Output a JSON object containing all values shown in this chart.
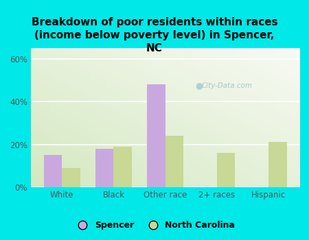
{
  "title": "Breakdown of poor residents within races\n(income below poverty level) in Spencer,\nNC",
  "categories": [
    "White",
    "Black",
    "Other race",
    "2+ races",
    "Hispanic"
  ],
  "spencer_values": [
    15,
    18,
    48,
    0,
    0
  ],
  "nc_values": [
    9,
    19,
    24,
    16,
    21
  ],
  "spencer_color": "#c9a8e0",
  "nc_color": "#c8d895",
  "background_outer": "#00e8e8",
  "ylim": [
    0,
    65
  ],
  "yticks": [
    0,
    20,
    40,
    60
  ],
  "ytick_labels": [
    "0%",
    "20%",
    "40%",
    "60%"
  ],
  "bar_width": 0.35,
  "title_fontsize": 11,
  "watermark": "City-Data.com",
  "legend_spencer": "Spencer",
  "legend_nc": "North Carolina"
}
